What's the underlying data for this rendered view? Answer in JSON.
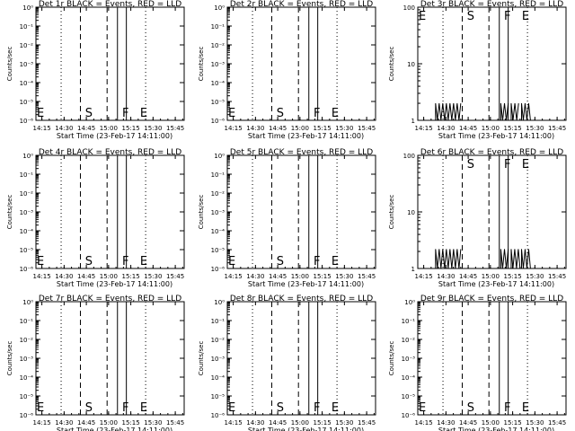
{
  "figure": {
    "x_range": [
      "14:11:00",
      "15:51:00"
    ],
    "x_ticks": [
      "14:15",
      "14:30",
      "14:45",
      "15:00",
      "15:15",
      "15:30",
      "15:45"
    ],
    "x_label": "Start Time (23-Feb-17 14:11:00)",
    "y_label": "Counts/sec"
  },
  "vlines": {
    "dotted": [
      "14:28",
      "15:25"
    ],
    "dashed": [
      "14:41",
      "14:59"
    ],
    "solid": [
      "15:06",
      "15:12"
    ]
  },
  "y_ticks_wide": [
    "10⁰",
    "10⁻¹",
    "10⁻²",
    "10⁻³",
    "10⁻⁴",
    "10⁻⁵",
    "10⁻⁶"
  ],
  "y_ticks_log": [
    "1",
    "10",
    "100"
  ],
  "chart_data": [
    {
      "type": "line",
      "title": "Det 1r BLACK = Events, RED = LLD",
      "y_scale": "log",
      "ylim": [
        1e-06,
        1
      ],
      "markers": [
        "E",
        "S",
        "F",
        "E"
      ],
      "series": []
    },
    {
      "type": "line",
      "title": "Det 2r BLACK = Events, RED = LLD",
      "y_scale": "log",
      "ylim": [
        1e-06,
        1
      ],
      "markers": [
        "E",
        "S",
        "F",
        "E"
      ],
      "series": []
    },
    {
      "type": "line",
      "title": "Det 3r BLACK = Events, RED = LLD",
      "y_scale": "log",
      "ylim": [
        1,
        100
      ],
      "markers": [
        "E",
        "S",
        "F",
        "E"
      ],
      "series": [
        {
          "color": "#000000",
          "bursts": [
            [
              "14:23",
              "14:40"
            ],
            [
              "15:07",
              "15:12"
            ],
            [
              "15:14",
              "15:19"
            ],
            [
              "15:21",
              "15:27"
            ]
          ],
          "low": 1,
          "high": 2
        }
      ]
    },
    {
      "type": "line",
      "title": "Det 4r BLACK = Events, RED = LLD",
      "y_scale": "log",
      "ylim": [
        1e-06,
        1
      ],
      "markers": [
        "E",
        "S",
        "F",
        "E"
      ],
      "series": []
    },
    {
      "type": "line",
      "title": "Det 5r BLACK = Events, RED = LLD",
      "y_scale": "log",
      "ylim": [
        1e-06,
        1
      ],
      "markers": [
        "E",
        "S",
        "F",
        "E"
      ],
      "series": []
    },
    {
      "type": "line",
      "title": "Det 6r BLACK = Events, RED = LLD",
      "y_scale": "log",
      "ylim": [
        1,
        100
      ],
      "markers": [
        "S",
        "F",
        "E"
      ],
      "series": [
        {
          "color": "#000000",
          "bursts": [
            [
              "14:23",
              "14:40"
            ],
            [
              "15:07",
              "15:12"
            ],
            [
              "15:14",
              "15:20"
            ],
            [
              "15:21",
              "15:27"
            ]
          ],
          "low": 1,
          "high": 2.2
        }
      ]
    },
    {
      "type": "line",
      "title": "Det 7r BLACK = Events, RED = LLD",
      "y_scale": "log",
      "ylim": [
        1e-06,
        1
      ],
      "markers": [
        "E",
        "S",
        "F",
        "E"
      ],
      "series": []
    },
    {
      "type": "line",
      "title": "Det 8r BLACK = Events, RED = LLD",
      "y_scale": "log",
      "ylim": [
        1e-06,
        1
      ],
      "markers": [
        "E",
        "S",
        "F",
        "E"
      ],
      "series": []
    },
    {
      "type": "line",
      "title": "Det 9r BLACK = Events, RED = LLD",
      "y_scale": "log",
      "ylim": [
        1e-06,
        1
      ],
      "markers": [
        "E",
        "S",
        "F",
        "E"
      ],
      "series": []
    }
  ]
}
